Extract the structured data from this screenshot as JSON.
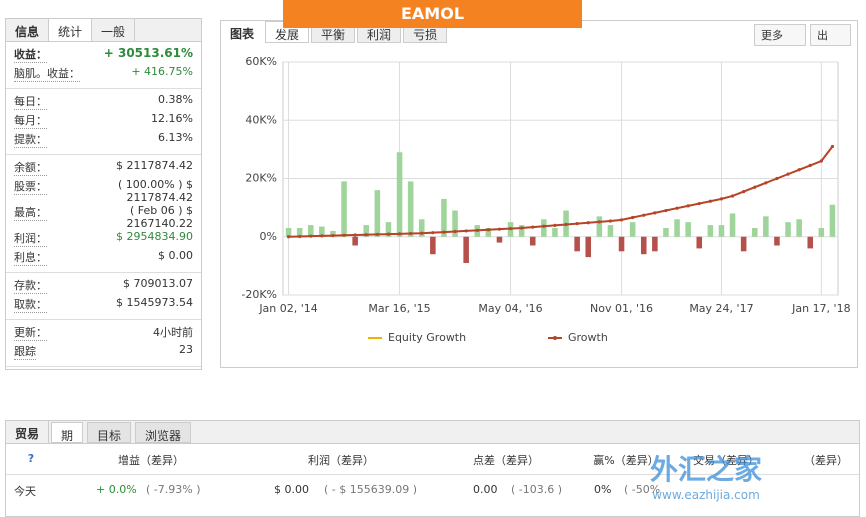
{
  "banner": {
    "logo": "EAMOL"
  },
  "stats": {
    "tabs": [
      "信息",
      "统计",
      "一般"
    ],
    "groups": [
      [
        {
          "label": "收益：",
          "value": "+ 30513.61%"
        },
        {
          "label": "脑肌。收益：",
          "value": "+ 416.75%"
        }
      ],
      [
        {
          "label": "每日：",
          "value": "0.38%"
        },
        {
          "label": "每月：",
          "value": "12.16%"
        },
        {
          "label": "提款：",
          "value": "6.13%"
        }
      ],
      [
        {
          "label": "余额：",
          "value": "$ 2117874.42"
        },
        {
          "label": "股票：",
          "value": "( 100.00% ) $ 2117874.42"
        },
        {
          "label": "最高：",
          "value": "( Feb 06 ) $ 2167140.22"
        },
        {
          "label": "利润：",
          "value": "$ 2954834.90"
        },
        {
          "label": "利息：",
          "value": "$ 0.00"
        }
      ],
      [
        {
          "label": "存款：",
          "value": "$ 709013.07"
        },
        {
          "label": "取款：",
          "value": "$ 1545973.54"
        }
      ],
      [
        {
          "label": "更新：",
          "value": "4小时前"
        },
        {
          "label": "跟踪",
          "value": "23"
        }
      ]
    ]
  },
  "chart_panel": {
    "title": "图表",
    "tabs": [
      "发展",
      "平衡",
      "利润",
      "亏损"
    ],
    "menus": [
      "更多",
      "出"
    ]
  },
  "chart_data": {
    "type": "bar-line",
    "categories": [
      "Jan 02, '14",
      null,
      null,
      null,
      null,
      null,
      null,
      null,
      null,
      null,
      "Mar 16, '15",
      null,
      null,
      null,
      null,
      null,
      null,
      null,
      null,
      null,
      "May 04, '16",
      null,
      null,
      null,
      null,
      null,
      null,
      null,
      null,
      null,
      "Nov 01, '16",
      null,
      null,
      null,
      null,
      null,
      null,
      null,
      null,
      "May 24, '17",
      null,
      null,
      null,
      null,
      null,
      null,
      null,
      null,
      "Jan 17, '18",
      null
    ],
    "ylim": [
      -20000,
      60000
    ],
    "yticks": [
      {
        "value": -20000,
        "label": "-20K%"
      },
      {
        "value": 0,
        "label": "0%"
      },
      {
        "value": 20000,
        "label": "20K%"
      },
      {
        "value": 40000,
        "label": "40K%"
      },
      {
        "value": 60000,
        "label": "60K%"
      }
    ],
    "grid": true,
    "bars": {
      "positive_color": "#9fd49a",
      "negative_color": "#b5504a",
      "values": [
        3000,
        3000,
        4000,
        3500,
        2000,
        19000,
        -3000,
        4000,
        16000,
        5000,
        29000,
        19000,
        6000,
        -6000,
        13000,
        9000,
        -9000,
        4000,
        3000,
        -2000,
        5000,
        4000,
        -3000,
        6000,
        3000,
        9000,
        -5000,
        -7000,
        7000,
        4000,
        -5000,
        5000,
        -6000,
        -5000,
        3000,
        6000,
        5000,
        -4000,
        4000,
        4000,
        8000,
        -5000,
        3000,
        7000,
        -3000,
        5000,
        6000,
        -4000,
        3000,
        11000
      ]
    },
    "series": [
      {
        "name": "Equity Growth",
        "color": "#f0b400",
        "values": [
          0,
          100,
          200,
          300,
          400,
          500,
          600,
          700,
          800,
          900,
          1000,
          1100,
          1200,
          1400,
          1600,
          1800,
          2000,
          2200,
          2400,
          2600,
          2800,
          3000,
          3300,
          3600,
          3900,
          4200,
          4500,
          4800,
          5100,
          5400,
          5800,
          6600,
          7400,
          8200,
          9000,
          9800,
          10600,
          11400,
          12200,
          13000,
          14000,
          15500,
          17000,
          18500,
          20000,
          21500,
          23000,
          24500,
          26000,
          31000
        ]
      },
      {
        "name": "Growth",
        "color": "#b5442a",
        "values": [
          0,
          100,
          200,
          300,
          400,
          500,
          600,
          700,
          800,
          900,
          1000,
          1100,
          1200,
          1400,
          1600,
          1800,
          2000,
          2200,
          2400,
          2600,
          2800,
          3000,
          3300,
          3600,
          3900,
          4200,
          4500,
          4800,
          5100,
          5400,
          5800,
          6600,
          7400,
          8200,
          9000,
          9800,
          10600,
          11400,
          12200,
          13000,
          14000,
          15500,
          17000,
          18500,
          20000,
          21500,
          23000,
          24500,
          26000,
          31000
        ]
      }
    ]
  },
  "trades": {
    "tabs": [
      "贸易",
      "期",
      "目标",
      "浏览器"
    ],
    "headers": [
      "?",
      "增益（差异）",
      "利润（差异）",
      "点差（差异）",
      "赢%（差异）",
      "交易（差异）",
      "（差异）"
    ],
    "rows": [
      [
        "今天",
        "+ 0.0%",
        "( -7.93% )",
        "$ 0.00",
        "( - $ 155639.09 )",
        "0.00",
        "( -103.6 )",
        "0%",
        "( -50%"
      ]
    ]
  },
  "watermark": {
    "title": "外汇之家",
    "url": "www.eazhijia.com"
  }
}
